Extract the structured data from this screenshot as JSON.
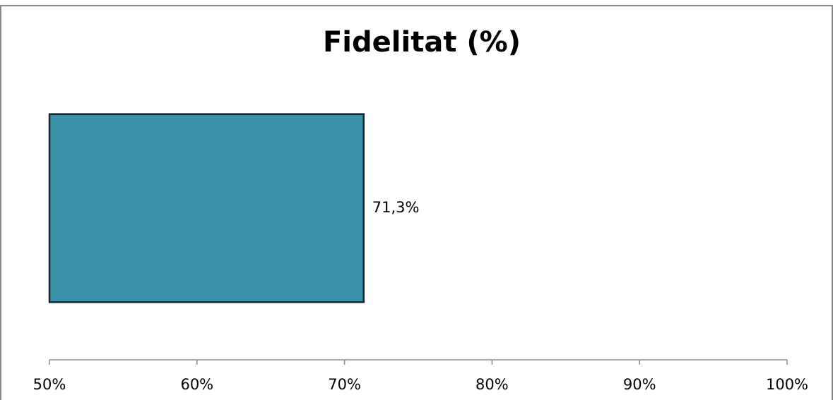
{
  "chart_data": {
    "type": "hbar",
    "title": "Fidelitat (%)",
    "categories": [
      null
    ],
    "values": [
      71.3
    ],
    "value_labels": [
      "71,3%"
    ],
    "color": "#3a8fa8",
    "xlim": [
      50,
      100
    ],
    "xticks": [
      {
        "value": 50,
        "label": "50%"
      },
      {
        "value": 60,
        "label": "60%"
      },
      {
        "value": 70,
        "label": "70%"
      },
      {
        "value": 80,
        "label": "80%"
      },
      {
        "value": 90,
        "label": "90%"
      },
      {
        "value": 100,
        "label": "100%"
      }
    ],
    "grid": false
  }
}
